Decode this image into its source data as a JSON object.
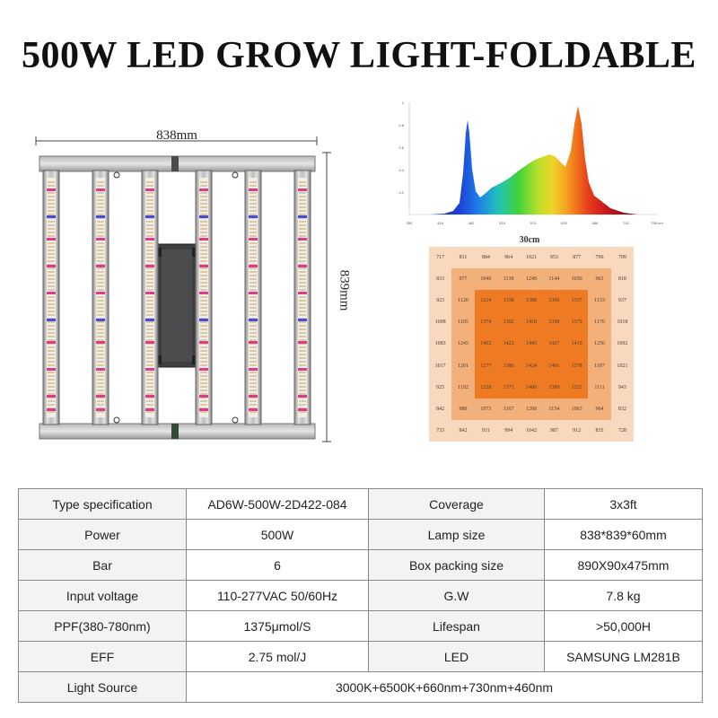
{
  "title": "500W LED GROW LIGHT-FOLDABLE",
  "dimensions": {
    "width": "838mm",
    "height": "839mm"
  },
  "ppfd": {
    "label": "30cm",
    "rows": [
      [
        "717",
        "811",
        "884",
        "964",
        "1021",
        "953",
        "877",
        "796",
        "709"
      ],
      [
        "833",
        "977",
        "1046",
        "1138",
        "1249",
        "1144",
        "1056",
        "963",
        "818"
      ],
      [
        "923",
        "1120",
        "1214",
        "1358",
        "1388",
        "1366",
        "1337",
        "1133",
        "937"
      ],
      [
        "1008",
        "1165",
        "1374",
        "1392",
        "1418",
        "1398",
        "1379",
        "1176",
        "1018"
      ],
      [
        "1083",
        "1245",
        "1402",
        "1422",
        "1443",
        "1427",
        "1410",
        "1256",
        "1092"
      ],
      [
        "1017",
        "1201",
        "1277",
        "1386",
        "1424",
        "1401",
        "1378",
        "1187",
        "1021"
      ],
      [
        "925",
        "1192",
        "1328",
        "1371",
        "1400",
        "1389",
        "1325",
        "1111",
        "943"
      ],
      [
        "842",
        "988",
        "1073",
        "1167",
        "1268",
        "1154",
        "1063",
        "964",
        "832"
      ],
      [
        "733",
        "842",
        "931",
        "994",
        "1042",
        "987",
        "912",
        "835",
        "728"
      ]
    ],
    "colors": {
      "outer": "#f8d9bd",
      "middle": "#f3b07a",
      "center": "#ee7b24"
    }
  },
  "spectrum": {
    "ticks": [
      "359",
      "416",
      "462",
      "518",
      "574",
      "630",
      "686",
      "742",
      "798 nm"
    ],
    "y_ticks": [
      "1",
      "0.8",
      "0.6",
      "0.4",
      "0.2"
    ]
  },
  "specs": {
    "rows": [
      {
        "l1": "Type specification",
        "v1": "AD6W-500W-2D422-084",
        "l2": "Coverage",
        "v2": "3x3ft"
      },
      {
        "l1": "Power",
        "v1": "500W",
        "l2": "Lamp size",
        "v2": "838*839*60mm"
      },
      {
        "l1": "Bar",
        "v1": "6",
        "l2": "Box packing size",
        "v2": "890X90x475mm"
      },
      {
        "l1": "Input voltage",
        "v1": "110-277VAC 50/60Hz",
        "l2": "G.W",
        "v2": "7.8 kg"
      },
      {
        "l1": "PPF(380-780nm)",
        "v1": "1375μmol/S",
        "l2": "Lifespan",
        "v2": ">50,000H"
      },
      {
        "l1": "EFF",
        "v1": "2.75 mol/J",
        "l2": "LED",
        "v2": "SAMSUNG LM281B"
      }
    ],
    "last": {
      "label": "Light Source",
      "value": "3000K+6500K+660nm+730nm+460nm"
    }
  }
}
